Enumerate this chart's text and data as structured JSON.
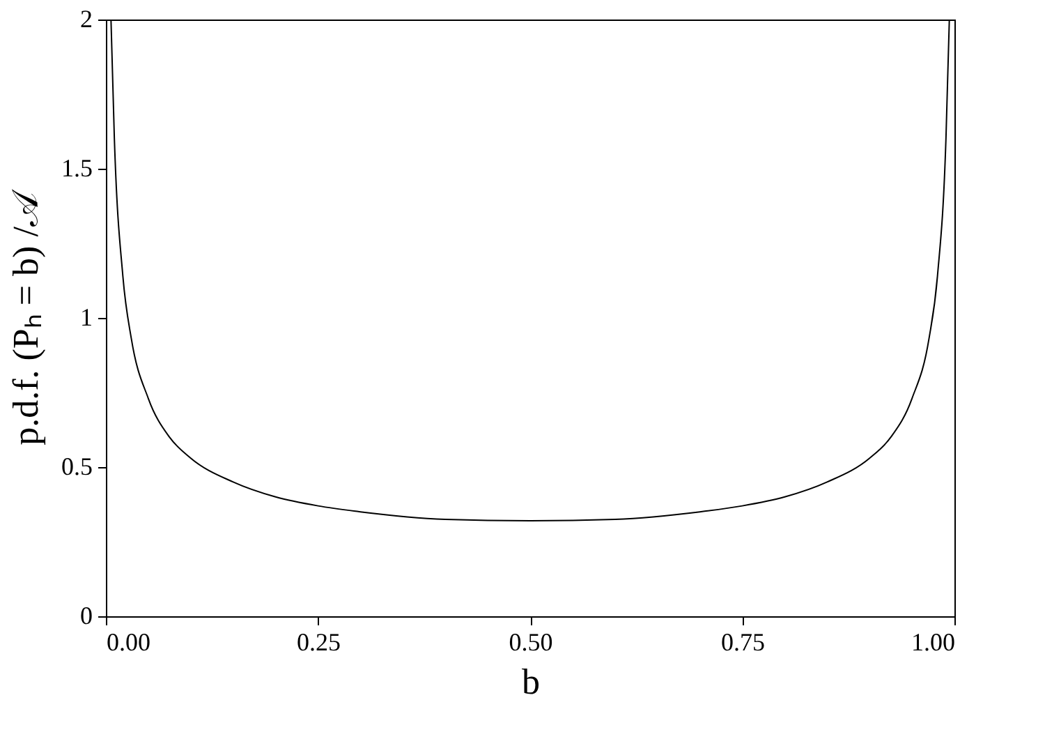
{
  "chart_data": {
    "type": "line",
    "xlabel": "b",
    "ylabel": "p.d.f. (Pₕ = b) /𝒜",
    "x": [
      0.006,
      0.01,
      0.02,
      0.03,
      0.05,
      0.075,
      0.1,
      0.15,
      0.2,
      0.25,
      0.3,
      0.4,
      0.5,
      0.6,
      0.7,
      0.75,
      0.8,
      0.85,
      0.9,
      0.925,
      0.95,
      0.97,
      0.98,
      0.99,
      0.994
    ],
    "series": [
      {
        "color": "#000000",
        "values": [
          2.0,
          1.6,
          1.14,
          0.93,
          0.73,
          0.6,
          0.53,
          0.45,
          0.4,
          0.37,
          0.35,
          0.325,
          0.32,
          0.325,
          0.35,
          0.37,
          0.4,
          0.45,
          0.53,
          0.6,
          0.73,
          0.93,
          1.14,
          1.6,
          2.0
        ]
      }
    ],
    "xlim": [
      0,
      1
    ],
    "ylim": [
      0,
      2
    ],
    "xticks": [
      {
        "value": 0,
        "label": "0.00"
      },
      {
        "value": 0.25,
        "label": "0.25"
      },
      {
        "value": 0.5,
        "label": "0.50"
      },
      {
        "value": 0.75,
        "label": "0.75"
      },
      {
        "value": 1,
        "label": "1.00"
      }
    ],
    "yticks": [
      0,
      0.5,
      1,
      1.5,
      2
    ],
    "grid": false,
    "marker": "none",
    "line_style": "solid"
  }
}
